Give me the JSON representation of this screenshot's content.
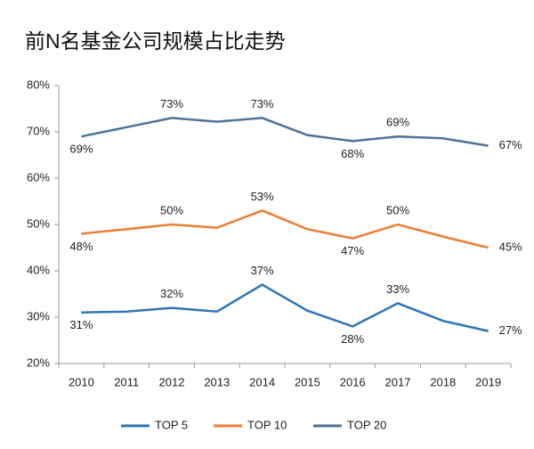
{
  "chart_data": {
    "type": "line",
    "title": "前N名基金公司规模占比走势",
    "categories": [
      "2010",
      "2011",
      "2012",
      "2013",
      "2014",
      "2015",
      "2016",
      "2017",
      "2018",
      "2019"
    ],
    "series": [
      {
        "name": "TOP 5",
        "color": "#2e75b6",
        "values": [
          31,
          31.2,
          32,
          31.2,
          37,
          31.4,
          28,
          33,
          29.2,
          27
        ],
        "value_labels": [
          "31%",
          null,
          "32%",
          null,
          "37%",
          null,
          "28%",
          "33%",
          null,
          "27%"
        ]
      },
      {
        "name": "TOP 10",
        "color": "#ed7d31",
        "values": [
          48,
          49,
          50,
          49.3,
          53,
          49,
          47,
          50,
          47.4,
          45
        ],
        "value_labels": [
          "48%",
          null,
          "50%",
          null,
          "53%",
          null,
          "47%",
          "50%",
          null,
          "45%"
        ]
      },
      {
        "name": "TOP 20",
        "color": "#4f7299",
        "values": [
          69,
          71,
          73,
          72.2,
          73,
          69.3,
          68,
          69,
          68.6,
          67
        ],
        "value_labels": [
          "69%",
          null,
          "73%",
          null,
          "73%",
          null,
          "68%",
          "69%",
          null,
          "67%"
        ]
      }
    ],
    "ylim": [
      20,
      80
    ],
    "yticks": [
      {
        "value": 20,
        "label": "20%"
      },
      {
        "value": 30,
        "label": "30%"
      },
      {
        "value": 40,
        "label": "40%"
      },
      {
        "value": 50,
        "label": "50%"
      },
      {
        "value": 60,
        "label": "60%"
      },
      {
        "value": 70,
        "label": "70%"
      },
      {
        "value": 80,
        "label": "80%"
      }
    ],
    "grid": false
  }
}
